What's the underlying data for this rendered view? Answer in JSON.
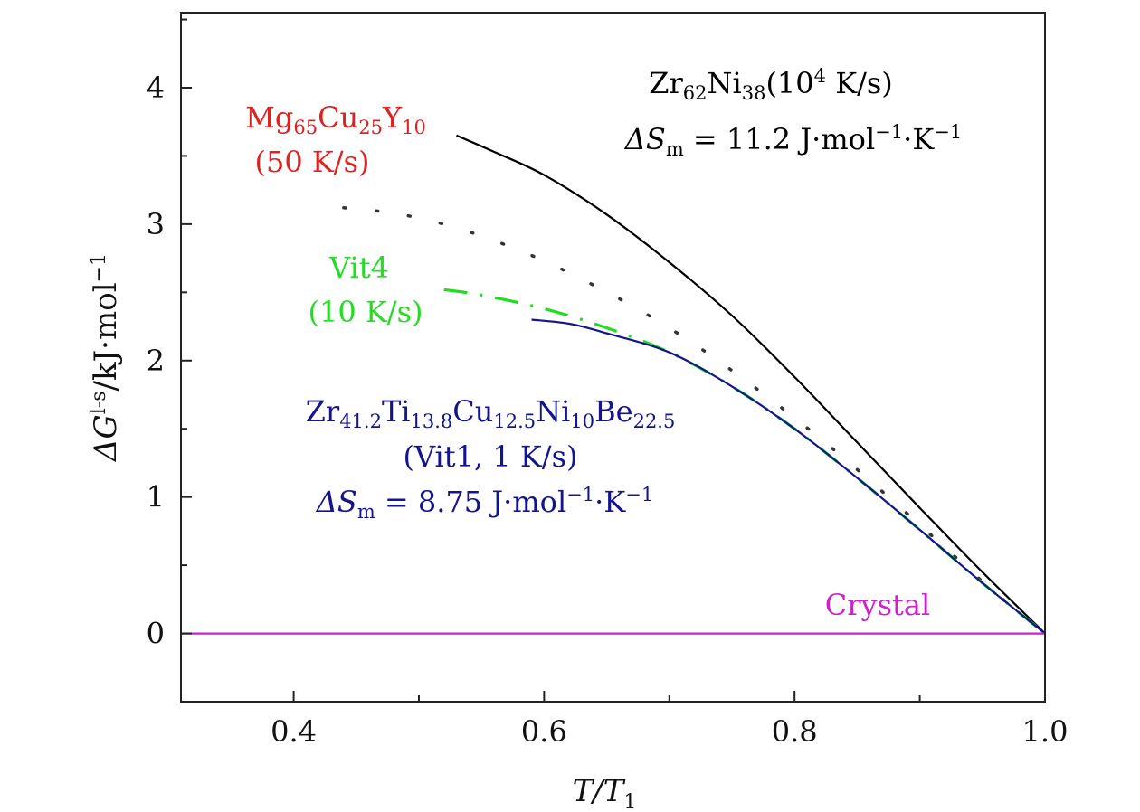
{
  "chart_data": {
    "type": "line",
    "xlabel": "T/T",
    "xlabel_sub": "1",
    "ylabel": "ΔG",
    "ylabel_sup": "l-s",
    "ylabel_unit": "/kJ·mol",
    "ylabel_unit_sup": "−1",
    "xlim": [
      0.31,
      1.0
    ],
    "ylim": [
      -0.5,
      4.55
    ],
    "xticks": [
      0.4,
      0.6,
      0.8,
      1.0
    ],
    "xtick_labels": [
      "0.4",
      "0.6",
      "0.8",
      "1.0"
    ],
    "x_minor_ticks": [
      0.5,
      0.7,
      0.9
    ],
    "yticks": [
      0,
      1,
      2,
      3,
      4
    ],
    "ytick_labels": [
      "0",
      "1",
      "2",
      "3",
      "4"
    ],
    "y_minor_ticks": [
      -0.5,
      0.5,
      1.5,
      2.5,
      3.5,
      4.5
    ],
    "grid": false,
    "series": [
      {
        "key": "zr62",
        "color": "#000000",
        "style": "solid",
        "x": [
          0.53,
          0.56,
          0.6,
          0.65,
          0.7,
          0.75,
          0.8,
          0.85,
          0.9,
          0.95,
          1.0
        ],
        "y": [
          3.65,
          3.53,
          3.36,
          3.07,
          2.72,
          2.33,
          1.88,
          1.4,
          0.92,
          0.45,
          0.0
        ]
      },
      {
        "key": "mg65",
        "color": "#000000",
        "style": "dotted",
        "x": [
          0.44,
          0.48,
          0.52,
          0.56,
          0.6,
          0.64,
          0.68,
          0.72,
          0.76,
          0.8,
          0.84,
          0.88,
          0.92,
          0.96,
          1.0
        ],
        "y": [
          3.12,
          3.08,
          3.0,
          2.88,
          2.73,
          2.55,
          2.35,
          2.12,
          1.86,
          1.58,
          1.28,
          0.96,
          0.63,
          0.3,
          0.0
        ]
      },
      {
        "key": "vit4",
        "color": "#22dd22",
        "style": "dashed",
        "x": [
          0.52,
          0.55,
          0.6,
          0.65,
          0.7,
          0.75,
          0.8,
          0.85,
          0.9,
          0.95,
          1.0
        ],
        "y": [
          2.52,
          2.48,
          2.38,
          2.24,
          2.06,
          1.81,
          1.5,
          1.14,
          0.76,
          0.37,
          0.0
        ]
      },
      {
        "key": "vit1",
        "color": "#14148c",
        "style": "solid",
        "x": [
          0.59,
          0.62,
          0.65,
          0.7,
          0.75,
          0.8,
          0.85,
          0.9,
          0.95,
          1.0
        ],
        "y": [
          2.3,
          2.27,
          2.2,
          2.06,
          1.81,
          1.5,
          1.14,
          0.76,
          0.37,
          0.0
        ]
      },
      {
        "key": "crystal",
        "color": "#cc22cc",
        "style": "solid",
        "x": [
          0.31,
          1.0
        ],
        "y": [
          0.0,
          0.0
        ]
      }
    ],
    "annotations": {
      "zr62_title": {
        "p1": "Zr",
        "s1": "62",
        "p2": "Ni",
        "s2": "38",
        "p3": "(10",
        "sup": "4",
        "p4": " K/s)",
        "color": "#000000"
      },
      "zr62_entropy": {
        "p1": "ΔS",
        "s1": "m",
        "p2": " = 11.2  J·mol",
        "sup1": "−1",
        "p3": "·K",
        "sup2": "−1",
        "color": "#000000"
      },
      "mg65_title": {
        "p1": "Mg",
        "s1": "65",
        "p2": "Cu",
        "s2": "25",
        "p3": "Y",
        "s3": "10",
        "color": "#dd2222"
      },
      "mg65_rate": {
        "text": "(50 K/s)",
        "color": "#dd2222"
      },
      "vit4_title": {
        "text": "Vit4",
        "color": "#22dd22"
      },
      "vit4_rate": {
        "text": "(10 K/s)",
        "color": "#22dd22"
      },
      "vit1_title": {
        "p1": "Zr",
        "s1": "41.2",
        "p2": "Ti",
        "s2": "13.8",
        "p3": "Cu",
        "s3": "12.5",
        "p4": "Ni",
        "s4": "10",
        "p5": "Be",
        "s5": "22.5",
        "color": "#14148c"
      },
      "vit1_rate": {
        "text": "(Vit1, 1 K/s)",
        "color": "#14148c"
      },
      "vit1_entropy": {
        "p1": "ΔS",
        "s1": "m",
        "p2": " = 8.75  J·mol",
        "sup1": "−1",
        "p3": "·K",
        "sup2": "−1",
        "color": "#14148c"
      },
      "crystal_label": {
        "text": "Crystal",
        "color": "#cc22cc"
      }
    }
  }
}
